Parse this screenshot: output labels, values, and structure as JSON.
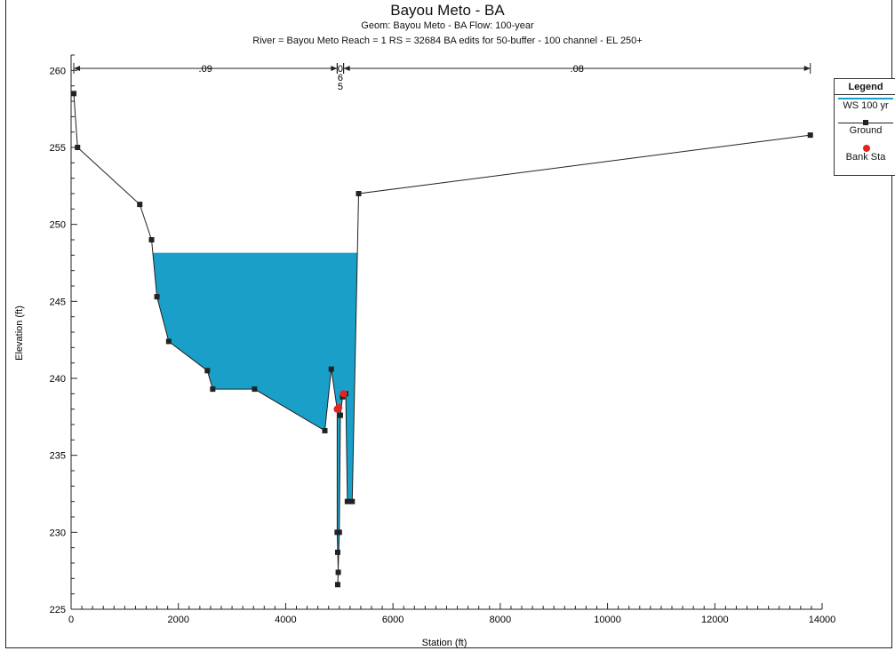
{
  "titles": {
    "main": "Bayou Meto - BA",
    "sub": "Geom: Bayou Meto - BA   Flow: 100-year",
    "info": "River = Bayou Meto   Reach = 1      RS = 32684    BA edits for 50-buffer - 100 channel - EL 250+"
  },
  "legend": {
    "title": "Legend",
    "items": [
      {
        "label": "WS 100 yr"
      },
      {
        "label": "Ground"
      },
      {
        "label": "Bank Sta"
      }
    ]
  },
  "colors": {
    "water": "#1aa0c8",
    "ground": "#222222",
    "bank": "#e6231e"
  },
  "chart_data": {
    "type": "line",
    "xlabel": "Station (ft)",
    "ylabel": "Elevation (ft)",
    "xlim": [
      0,
      14000
    ],
    "ylim": [
      225,
      261
    ],
    "x_ticks": [
      0,
      2000,
      4000,
      6000,
      8000,
      10000,
      12000,
      14000
    ],
    "y_ticks": [
      225,
      230,
      235,
      240,
      245,
      250,
      255,
      260
    ],
    "grid": false,
    "legend_position": "right",
    "water_surface_elevation": 248.1,
    "ground": [
      [
        50,
        258.5
      ],
      [
        120,
        255.0
      ],
      [
        1280,
        251.3
      ],
      [
        1500,
        249.0
      ],
      [
        1600,
        245.3
      ],
      [
        1820,
        242.4
      ],
      [
        2540,
        240.5
      ],
      [
        2640,
        239.3
      ],
      [
        3420,
        239.3
      ],
      [
        4730,
        236.6
      ],
      [
        4850,
        240.6
      ],
      [
        4960,
        238.0
      ],
      [
        4960,
        230.0
      ],
      [
        4970,
        228.7
      ],
      [
        4980,
        227.4
      ],
      [
        4970,
        226.6
      ],
      [
        5000,
        230.0
      ],
      [
        5020,
        237.6
      ],
      [
        5060,
        238.8
      ],
      [
        5120,
        239.0
      ],
      [
        5150,
        232.0
      ],
      [
        5240,
        232.0
      ],
      [
        5360,
        252.0
      ],
      [
        13780,
        255.8
      ]
    ],
    "bank_stations": [
      [
        4960,
        238.0
      ],
      [
        4990,
        238.1
      ],
      [
        5080,
        239.0
      ]
    ],
    "manning_n": [
      {
        "label": ".09",
        "from": 50,
        "to": 4960
      },
      {
        "label": "0\n6\n5",
        "from": 4960,
        "to": 5080
      },
      {
        "label": ".08",
        "from": 5080,
        "to": 13780
      }
    ]
  }
}
